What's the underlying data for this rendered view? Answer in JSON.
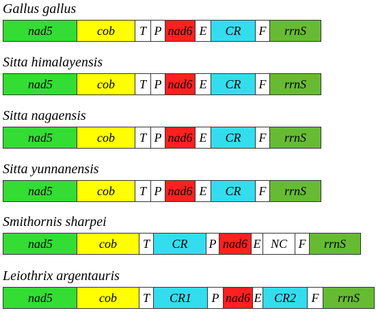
{
  "colors": {
    "nad5": "#33dd33",
    "cob": "#ffff00",
    "trna": "#ffffff",
    "nad6": "#ff2020",
    "cr": "#33ddee",
    "nc": "#ffffff",
    "rrnS": "#66bb33"
  },
  "tracks": [
    {
      "species": "Gallus gallus",
      "segments": [
        {
          "label": "nad5",
          "type": "nad5"
        },
        {
          "label": "cob",
          "type": "cob"
        },
        {
          "label": "T",
          "type": "trna"
        },
        {
          "label": "P",
          "type": "trna"
        },
        {
          "label": "nad6",
          "type": "nad6"
        },
        {
          "label": "E",
          "type": "trna"
        },
        {
          "label": "CR",
          "type": "cr"
        },
        {
          "label": "F",
          "type": "trna"
        },
        {
          "label": "rrnS",
          "type": "rrnS"
        }
      ]
    },
    {
      "species": "Sitta himalayensis",
      "segments": [
        {
          "label": "nad5",
          "type": "nad5"
        },
        {
          "label": "cob",
          "type": "cob"
        },
        {
          "label": "T",
          "type": "trna"
        },
        {
          "label": "P",
          "type": "trna"
        },
        {
          "label": "nad6",
          "type": "nad6"
        },
        {
          "label": "E",
          "type": "trna"
        },
        {
          "label": "CR",
          "type": "cr"
        },
        {
          "label": "F",
          "type": "trna"
        },
        {
          "label": "rrnS",
          "type": "rrnS"
        }
      ]
    },
    {
      "species": "Sitta nagaensis",
      "segments": [
        {
          "label": "nad5",
          "type": "nad5"
        },
        {
          "label": "cob",
          "type": "cob"
        },
        {
          "label": "T",
          "type": "trna"
        },
        {
          "label": "P",
          "type": "trna"
        },
        {
          "label": "nad6",
          "type": "nad6"
        },
        {
          "label": "E",
          "type": "trna"
        },
        {
          "label": "CR",
          "type": "cr"
        },
        {
          "label": "F",
          "type": "trna"
        },
        {
          "label": "rrnS",
          "type": "rrnS"
        }
      ]
    },
    {
      "species": "Sitta yunnanensis",
      "segments": [
        {
          "label": "nad5",
          "type": "nad5"
        },
        {
          "label": "cob",
          "type": "cob"
        },
        {
          "label": "T",
          "type": "trna"
        },
        {
          "label": "P",
          "type": "trna"
        },
        {
          "label": "nad6",
          "type": "nad6"
        },
        {
          "label": "E",
          "type": "trna"
        },
        {
          "label": "CR",
          "type": "cr"
        },
        {
          "label": "F",
          "type": "trna"
        },
        {
          "label": "rrnS",
          "type": "rrnS"
        }
      ]
    },
    {
      "species": "Smithornis sharpei",
      "segments": [
        {
          "label": "nad5",
          "type": "nad5"
        },
        {
          "label": "cob",
          "type": "cob"
        },
        {
          "label": "T",
          "type": "trna"
        },
        {
          "label": "CR",
          "type": "cr"
        },
        {
          "label": "P",
          "type": "trna"
        },
        {
          "label": "nad6",
          "type": "nad6"
        },
        {
          "label": "E",
          "type": "trna"
        },
        {
          "label": "NC",
          "type": "nc"
        },
        {
          "label": "F",
          "type": "trna"
        },
        {
          "label": "rrnS",
          "type": "rrnS"
        }
      ]
    },
    {
      "species": "Leiothrix argentauris",
      "segments": [
        {
          "label": "nad5",
          "type": "nad5"
        },
        {
          "label": "cob",
          "type": "cob"
        },
        {
          "label": "T",
          "type": "trna"
        },
        {
          "label": "CR1",
          "type": "cr"
        },
        {
          "label": "P",
          "type": "trna"
        },
        {
          "label": "nad6",
          "type": "nad6"
        },
        {
          "label": "E",
          "type": "trna"
        },
        {
          "label": "CR2",
          "type": "cr"
        },
        {
          "label": "F",
          "type": "trna"
        },
        {
          "label": "rrnS",
          "type": "rrnS"
        }
      ]
    }
  ]
}
